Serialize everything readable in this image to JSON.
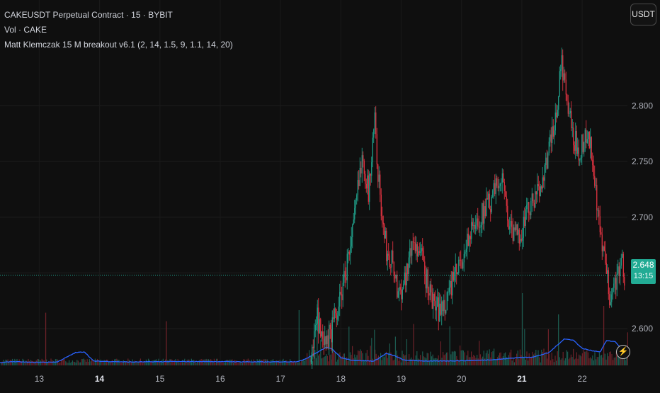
{
  "legend": {
    "symbol_line": "CAKEUSDT Perpetual Contract · 15 · BYBIT",
    "volume_line": "Vol · CAKE",
    "indicator_line": "Matt Klemczak 15 M breakout v6.1 (2, 14, 1.5, 9, 1.1, 14, 20)"
  },
  "toolbar": {
    "currency_label": "USDT"
  },
  "price_tag": {
    "price": "2.648",
    "countdown": "13:15",
    "color": "#22ab94"
  },
  "colors": {
    "up": "#22ab94",
    "down": "#f23645",
    "indicator_line": "#2962ff",
    "background": "#0f0f0f"
  },
  "icons": {
    "bolt": "lightning-bolt-icon"
  },
  "chart_data": {
    "type": "candlestick",
    "symbol": "CAKEUSDT",
    "exchange": "BYBIT",
    "interval": "15",
    "ylim": [
      2.567,
      2.895
    ],
    "y_ticks": [
      2.6,
      2.65,
      2.7,
      2.75,
      2.8
    ],
    "y_tick_labels": [
      "2.600",
      "",
      "2.700",
      "2.750",
      "2.800"
    ],
    "x_ticks": [
      {
        "label": "13",
        "day": 13,
        "bold": false
      },
      {
        "label": "14",
        "day": 14,
        "bold": true
      },
      {
        "label": "15",
        "day": 15,
        "bold": false
      },
      {
        "label": "16",
        "day": 16,
        "bold": false
      },
      {
        "label": "17",
        "day": 17,
        "bold": false
      },
      {
        "label": "18",
        "day": 18,
        "bold": false
      },
      {
        "label": "19",
        "day": 19,
        "bold": false
      },
      {
        "label": "20",
        "day": 20,
        "bold": false
      },
      {
        "label": "21",
        "day": 21,
        "bold": true
      },
      {
        "label": "22",
        "day": 22,
        "bold": false
      }
    ],
    "xlim_days": [
      12.35,
      22.75
    ],
    "last_price": 2.648,
    "price_path": [
      [
        17.5,
        2.57
      ],
      [
        17.6,
        2.61
      ],
      [
        17.7,
        2.58
      ],
      [
        17.85,
        2.6
      ],
      [
        18.0,
        2.63
      ],
      [
        18.2,
        2.69
      ],
      [
        18.35,
        2.76
      ],
      [
        18.45,
        2.72
      ],
      [
        18.55,
        2.79
      ],
      [
        18.65,
        2.71
      ],
      [
        18.75,
        2.67
      ],
      [
        18.85,
        2.66
      ],
      [
        18.95,
        2.63
      ],
      [
        19.05,
        2.645
      ],
      [
        19.2,
        2.68
      ],
      [
        19.35,
        2.66
      ],
      [
        19.45,
        2.635
      ],
      [
        19.55,
        2.62
      ],
      [
        19.65,
        2.615
      ],
      [
        19.8,
        2.635
      ],
      [
        19.95,
        2.655
      ],
      [
        20.1,
        2.68
      ],
      [
        20.3,
        2.7
      ],
      [
        20.5,
        2.715
      ],
      [
        20.65,
        2.74
      ],
      [
        20.75,
        2.705
      ],
      [
        20.85,
        2.68
      ],
      [
        21.0,
        2.69
      ],
      [
        21.1,
        2.705
      ],
      [
        21.25,
        2.72
      ],
      [
        21.4,
        2.75
      ],
      [
        21.55,
        2.785
      ],
      [
        21.65,
        2.84
      ],
      [
        21.75,
        2.8
      ],
      [
        21.85,
        2.77
      ],
      [
        21.95,
        2.76
      ],
      [
        22.05,
        2.775
      ],
      [
        22.15,
        2.76
      ],
      [
        22.25,
        2.7
      ],
      [
        22.35,
        2.665
      ],
      [
        22.45,
        2.63
      ],
      [
        22.55,
        2.645
      ],
      [
        22.65,
        2.66
      ],
      [
        22.7,
        2.648
      ]
    ],
    "volume_spikes": [
      [
        12.3,
        0.55
      ],
      [
        13.1,
        0.62
      ],
      [
        15.1,
        0.52
      ],
      [
        17.3,
        0.65
      ],
      [
        17.6,
        0.72
      ],
      [
        17.85,
        0.48
      ],
      [
        18.55,
        0.42
      ],
      [
        21.0,
        0.85
      ],
      [
        21.6,
        0.6
      ],
      [
        22.35,
        0.7
      ]
    ],
    "indicator_path": [
      [
        12.35,
        0.06
      ],
      [
        12.55,
        0.09
      ],
      [
        12.9,
        0.07
      ],
      [
        13.3,
        0.08
      ],
      [
        13.6,
        0.3
      ],
      [
        13.75,
        0.32
      ],
      [
        13.9,
        0.1
      ],
      [
        14.5,
        0.08
      ],
      [
        15.2,
        0.09
      ],
      [
        16.0,
        0.09
      ],
      [
        16.8,
        0.08
      ],
      [
        17.3,
        0.09
      ],
      [
        17.45,
        0.18
      ],
      [
        17.6,
        0.3
      ],
      [
        17.75,
        0.42
      ],
      [
        17.85,
        0.4
      ],
      [
        18.0,
        0.18
      ],
      [
        18.2,
        0.12
      ],
      [
        18.55,
        0.1
      ],
      [
        18.75,
        0.28
      ],
      [
        18.9,
        0.22
      ],
      [
        19.05,
        0.12
      ],
      [
        19.5,
        0.1
      ],
      [
        20.0,
        0.11
      ],
      [
        20.3,
        0.12
      ],
      [
        20.6,
        0.14
      ],
      [
        20.9,
        0.18
      ],
      [
        21.2,
        0.2
      ],
      [
        21.45,
        0.3
      ],
      [
        21.7,
        0.62
      ],
      [
        21.85,
        0.6
      ],
      [
        22.0,
        0.4
      ],
      [
        22.15,
        0.35
      ],
      [
        22.3,
        0.32
      ],
      [
        22.4,
        0.58
      ],
      [
        22.55,
        0.56
      ],
      [
        22.7,
        0.3
      ]
    ]
  }
}
